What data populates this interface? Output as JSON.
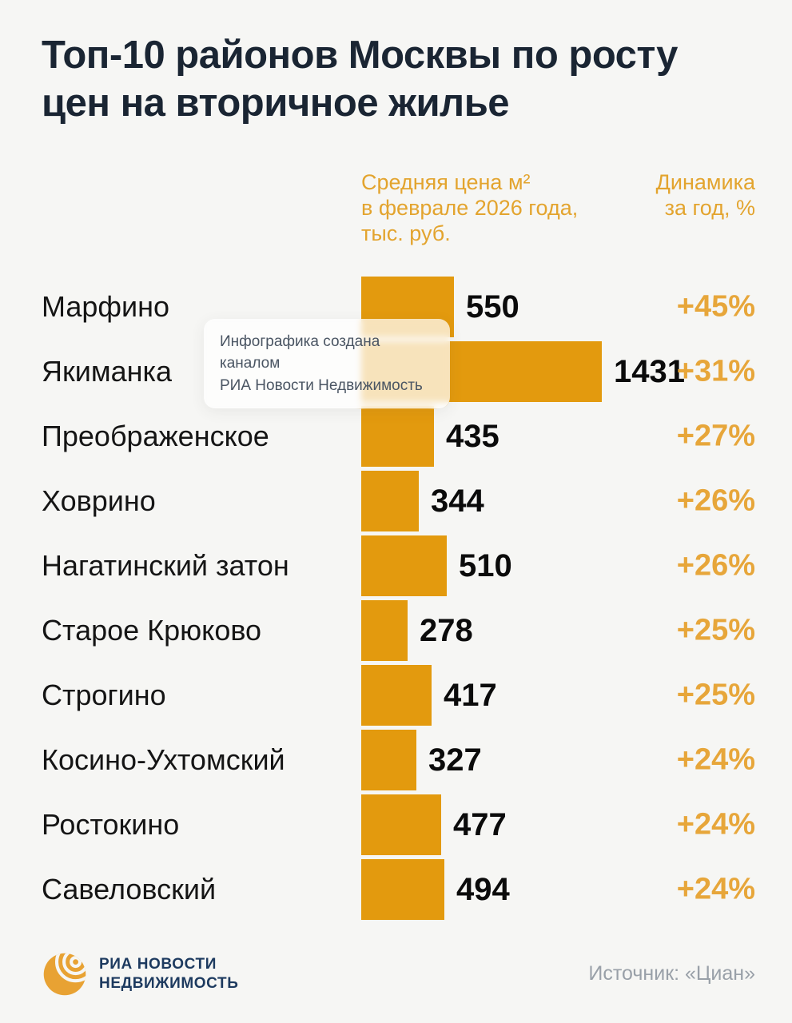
{
  "title": "Топ-10 районов Москвы по росту цен на вторичное жилье",
  "headers": {
    "price": "Средняя цена м²\nв феврале 2026 года,\nтыс. руб.",
    "dynamics": "Динамика\nза год, %"
  },
  "chart_data": {
    "type": "bar",
    "orientation": "horizontal",
    "title": "Топ-10 районов Москвы по росту цен на вторичное жилье",
    "categories": [
      "Марфино",
      "Якиманка",
      "Преображенское",
      "Ховрино",
      "Нагатинский затон",
      "Старое Крюково",
      "Строгино",
      "Косино-Ухтомский",
      "Ростокино",
      "Савеловский"
    ],
    "series": [
      {
        "name": "Средняя цена м² в феврале 2026 года, тыс. руб.",
        "values": [
          550,
          1431,
          435,
          344,
          510,
          278,
          417,
          327,
          477,
          494
        ]
      },
      {
        "name": "Динамика за год, %",
        "values": [
          45,
          31,
          27,
          26,
          26,
          25,
          25,
          24,
          24,
          24
        ]
      }
    ],
    "rows": [
      {
        "district": "Марфино",
        "price": 550,
        "dynamics": "+45%"
      },
      {
        "district": "Якиманка",
        "price": 1431,
        "dynamics": "+31%"
      },
      {
        "district": "Преображенское",
        "price": 435,
        "dynamics": "+27%"
      },
      {
        "district": "Ховрино",
        "price": 344,
        "dynamics": "+26%"
      },
      {
        "district": "Нагатинский затон",
        "price": 510,
        "dynamics": "+26%"
      },
      {
        "district": "Старое Крюково",
        "price": 278,
        "dynamics": "+25%"
      },
      {
        "district": "Строгино",
        "price": 417,
        "dynamics": "+25%"
      },
      {
        "district": "Косино-Ухтомский",
        "price": 327,
        "dynamics": "+24%"
      },
      {
        "district": "Ростокино",
        "price": 477,
        "dynamics": "+24%"
      },
      {
        "district": "Савеловский",
        "price": 494,
        "dynamics": "+24%"
      }
    ],
    "legend_position": "top",
    "grid": false
  },
  "watermark": {
    "line1": "Инфографика создана каналом",
    "line2": "РИА Новости Недвижимость"
  },
  "footer": {
    "brand_line1": "РИА Новости",
    "brand_line2": "Недвижимость",
    "source": "Источник: «Циан»"
  },
  "colors": {
    "background": "#f6f6f4",
    "bar": "#e39a0e",
    "accent_text": "#e3a42e",
    "title_text": "#1a2533",
    "brand_navy": "#1d3a5f"
  }
}
